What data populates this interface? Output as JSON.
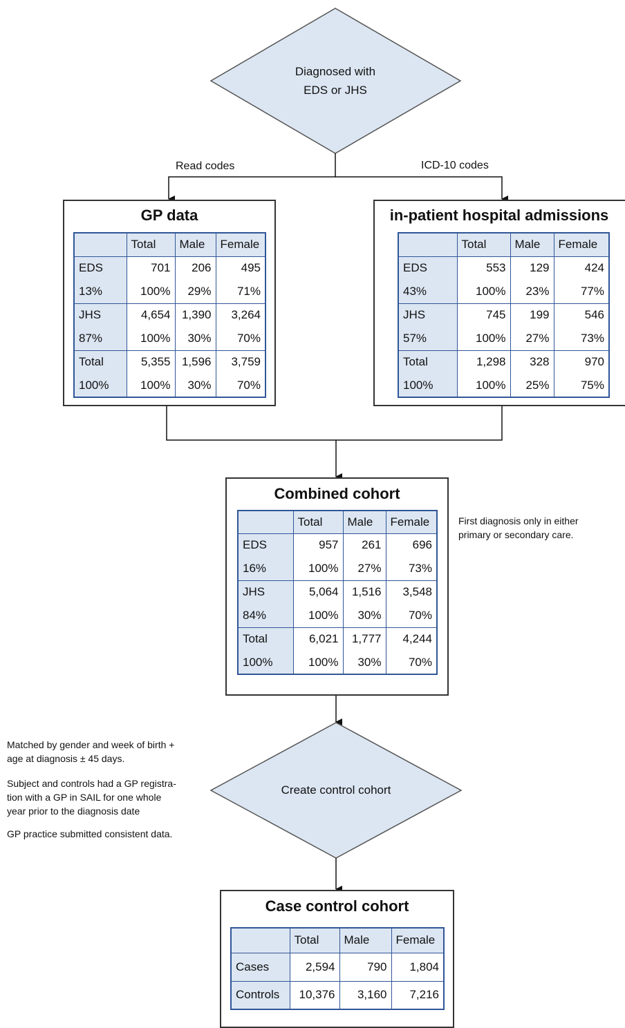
{
  "start": {
    "lines": [
      "Diagnosed with",
      "EDS or JHS"
    ]
  },
  "edges": [
    "Read codes",
    "ICD-10 codes"
  ],
  "tables": [
    {
      "title": "GP data",
      "header": [
        "",
        "Total",
        "Male",
        "Female"
      ],
      "groups": [
        [
          [
            "EDS",
            "701",
            "206",
            "495"
          ],
          [
            "13%",
            "100%",
            "29%",
            "71%"
          ]
        ],
        [
          [
            "JHS",
            "4,654",
            "1,390",
            "3,264"
          ],
          [
            "87%",
            "100%",
            "30%",
            "70%"
          ]
        ],
        [
          [
            "Total",
            "5,355",
            "1,596",
            "3,759"
          ],
          [
            "100%",
            "100%",
            "30%",
            "70%"
          ]
        ]
      ]
    },
    {
      "title": "in-patient hospital admissions",
      "header": [
        "",
        "Total",
        "Male",
        "Female"
      ],
      "groups": [
        [
          [
            "EDS",
            "553",
            "129",
            "424"
          ],
          [
            "43%",
            "100%",
            "23%",
            "77%"
          ]
        ],
        [
          [
            "JHS",
            "745",
            "199",
            "546"
          ],
          [
            "57%",
            "100%",
            "27%",
            "73%"
          ]
        ],
        [
          [
            "Total",
            "1,298",
            "328",
            "970"
          ],
          [
            "100%",
            "100%",
            "25%",
            "75%"
          ]
        ]
      ]
    },
    {
      "title": "Combined cohort",
      "header": [
        "",
        "Total",
        "Male",
        "Female"
      ],
      "groups": [
        [
          [
            "EDS",
            "957",
            "261",
            "696"
          ],
          [
            "16%",
            "100%",
            "27%",
            "73%"
          ]
        ],
        [
          [
            "JHS",
            "5,064",
            "1,516",
            "3,548"
          ],
          [
            "84%",
            "100%",
            "30%",
            "70%"
          ]
        ],
        [
          [
            "Total",
            "6,021",
            "1,777",
            "4,244"
          ],
          [
            "100%",
            "100%",
            "30%",
            "70%"
          ]
        ]
      ]
    },
    {
      "title": "Case control cohort",
      "header": [
        "",
        "Total",
        "Male",
        "Female"
      ],
      "groups": [
        [
          [
            "Cases",
            "2,594",
            "790",
            "1,804"
          ]
        ],
        [
          [
            "Controls",
            "10,376",
            "3,160",
            "7,216"
          ]
        ]
      ]
    }
  ],
  "combined_note": [
    "First diagnosis only in either",
    "primary or secondary care."
  ],
  "control_step": {
    "label": "Create control cohort"
  },
  "control_notes": [
    [
      "Matched by gender and week of birth +",
      "age at diagnosis ± 45 days."
    ],
    [
      "Subject and controls had a GP registra-",
      "tion with a GP in SAIL for one whole",
      "year prior to the diagnosis date"
    ],
    [
      "GP practice submitted consistent data."
    ]
  ]
}
